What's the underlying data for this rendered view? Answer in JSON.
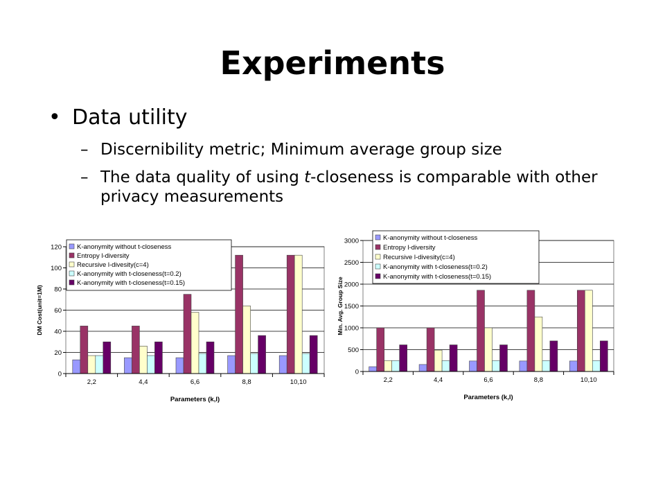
{
  "slide": {
    "title": "Experiments",
    "bullet": "Data utility",
    "sub1": "Discernibility metric; Minimum average group size",
    "sub2_pre": "The data quality of using ",
    "sub2_em": "t",
    "sub2_post": "-closeness is comparable with other privacy measurements"
  },
  "colors": {
    "s1": "#9999ff",
    "s2": "#993366",
    "s3": "#ffffcc",
    "s4": "#ccffff",
    "s5": "#660066"
  },
  "chart_data": [
    {
      "type": "bar",
      "categories": [
        "2,2",
        "4,4",
        "6,6",
        "8,8",
        "10,10"
      ],
      "xlabel": "Parameters (k,l)",
      "ylabel": "DM Cost(unit=1M)",
      "ylim": [
        0,
        120
      ],
      "yticks": [
        0,
        20,
        40,
        60,
        80,
        100,
        120
      ],
      "legend_position": "top-left",
      "series": [
        {
          "name": "K-anonymity without t-closeness",
          "values": [
            13,
            15,
            15,
            17,
            17
          ]
        },
        {
          "name": "Entropy l-diversity",
          "values": [
            45,
            45,
            75,
            112,
            112
          ]
        },
        {
          "name": "Recursive l-divesity(c=4)",
          "values": [
            17,
            26,
            58,
            64,
            112
          ]
        },
        {
          "name": "K-anonymity with t-closeness(t=0.2)",
          "values": [
            17,
            17,
            19,
            19,
            19
          ]
        },
        {
          "name": "K-anonymity with t-closeness(t=0.15)",
          "values": [
            30,
            30,
            30,
            36,
            36
          ]
        }
      ]
    },
    {
      "type": "bar",
      "categories": [
        "2,2",
        "4,4",
        "6,6",
        "8,8",
        "10,10"
      ],
      "xlabel": "Parameters (k,l)",
      "ylabel": "Min. Avg. Group Size",
      "ylim": [
        0,
        3000
      ],
      "yticks": [
        0,
        500,
        1000,
        1500,
        2000,
        2500,
        3000
      ],
      "legend_position": "top-left",
      "series": [
        {
          "name": "K-anonymity without t-closeness",
          "values": [
            110,
            160,
            240,
            240,
            240
          ]
        },
        {
          "name": "Entropy l-diversity",
          "values": [
            1000,
            1000,
            1860,
            1860,
            1860
          ]
        },
        {
          "name": "Recursive l-divesity(c=4)",
          "values": [
            250,
            490,
            1000,
            1250,
            1860
          ]
        },
        {
          "name": "K-anonymity with t-closeness(t=0.2)",
          "values": [
            250,
            250,
            250,
            250,
            250
          ]
        },
        {
          "name": "K-anonymity with t-closeness(t=0.15)",
          "values": [
            610,
            610,
            610,
            700,
            700
          ]
        }
      ]
    }
  ]
}
